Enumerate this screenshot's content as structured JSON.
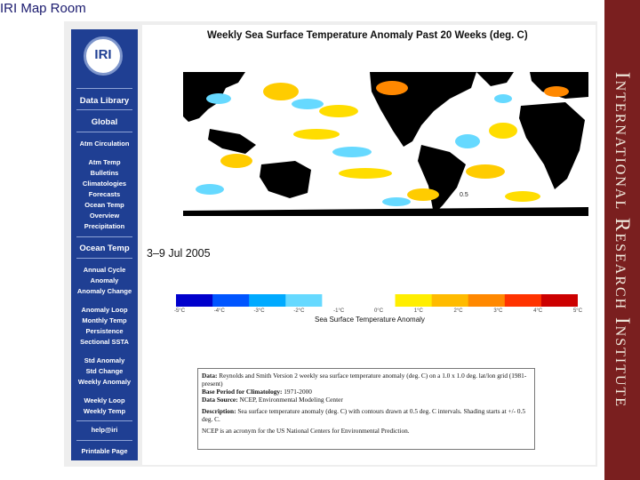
{
  "page_title": "IRI Map Room",
  "banner_text": "International Research Institute",
  "logo_text": "IRI",
  "sidebar": {
    "section1": "Data Library",
    "section2": "Global",
    "items1": [
      "Atm Circulation",
      "Atm Temp",
      "Bulletins",
      "Climatologies",
      "Forecasts",
      "Ocean Temp",
      "Overview",
      "Precipitation"
    ],
    "section3": "Ocean Temp",
    "items2": [
      "Annual Cycle",
      "Anomaly",
      "Anomaly Change",
      "Anomaly Loop",
      "Monthly Temp",
      "Persistence",
      "Sectional SSTA",
      "Std Anomaly",
      "Std Change",
      "Weekly Anomaly",
      "Weekly Loop",
      "Weekly Temp"
    ],
    "help": "help@iri",
    "printable": "Printable Page"
  },
  "map": {
    "title": "Weekly Sea Surface Temperature Anomaly Past 20 Weeks (deg. C)",
    "date": "3–9 Jul 2005",
    "contour_label": "0.5"
  },
  "colorbar": {
    "ticks": [
      "-5°C",
      "-4°C",
      "-3°C",
      "-2°C",
      "-1°C",
      "0°C",
      "1°C",
      "2°C",
      "3°C",
      "4°C",
      "5°C"
    ],
    "label": "Sea Surface Temperature Anomaly",
    "colors": [
      "#0000cc",
      "#0055ff",
      "#00aaff",
      "#66d9ff",
      "#ffffff",
      "#ffffff",
      "#ffee00",
      "#ffbb00",
      "#ff8800",
      "#ff3300",
      "#cc0000"
    ]
  },
  "description": {
    "data_label": "Data:",
    "data_text": "Reynolds and Smith Version 2 weekly sea surface temperature anomaly (deg. C) on a 1.0 x 1.0 deg. lat/lon grid (1981-present)",
    "base_label": "Base Period for Climatology:",
    "base_text": "1971-2000",
    "source_label": "Data Source:",
    "source_text": "NCEP, Environmental Modeling Center",
    "desc_label": "Description:",
    "desc_text": "Sea surface temperature anomaly (deg. C) with contours drawn at 0.5 deg. C intervals. Shading starts at +/- 0.5 deg. C.",
    "ncep_text": "NCEP is an acronym for the US National Centers for Environmental Prediction."
  },
  "colors": {
    "sidebar_bg": "#1f3f93",
    "banner_bg": "#7a1f1f",
    "frame_bg": "#eeeeee"
  }
}
